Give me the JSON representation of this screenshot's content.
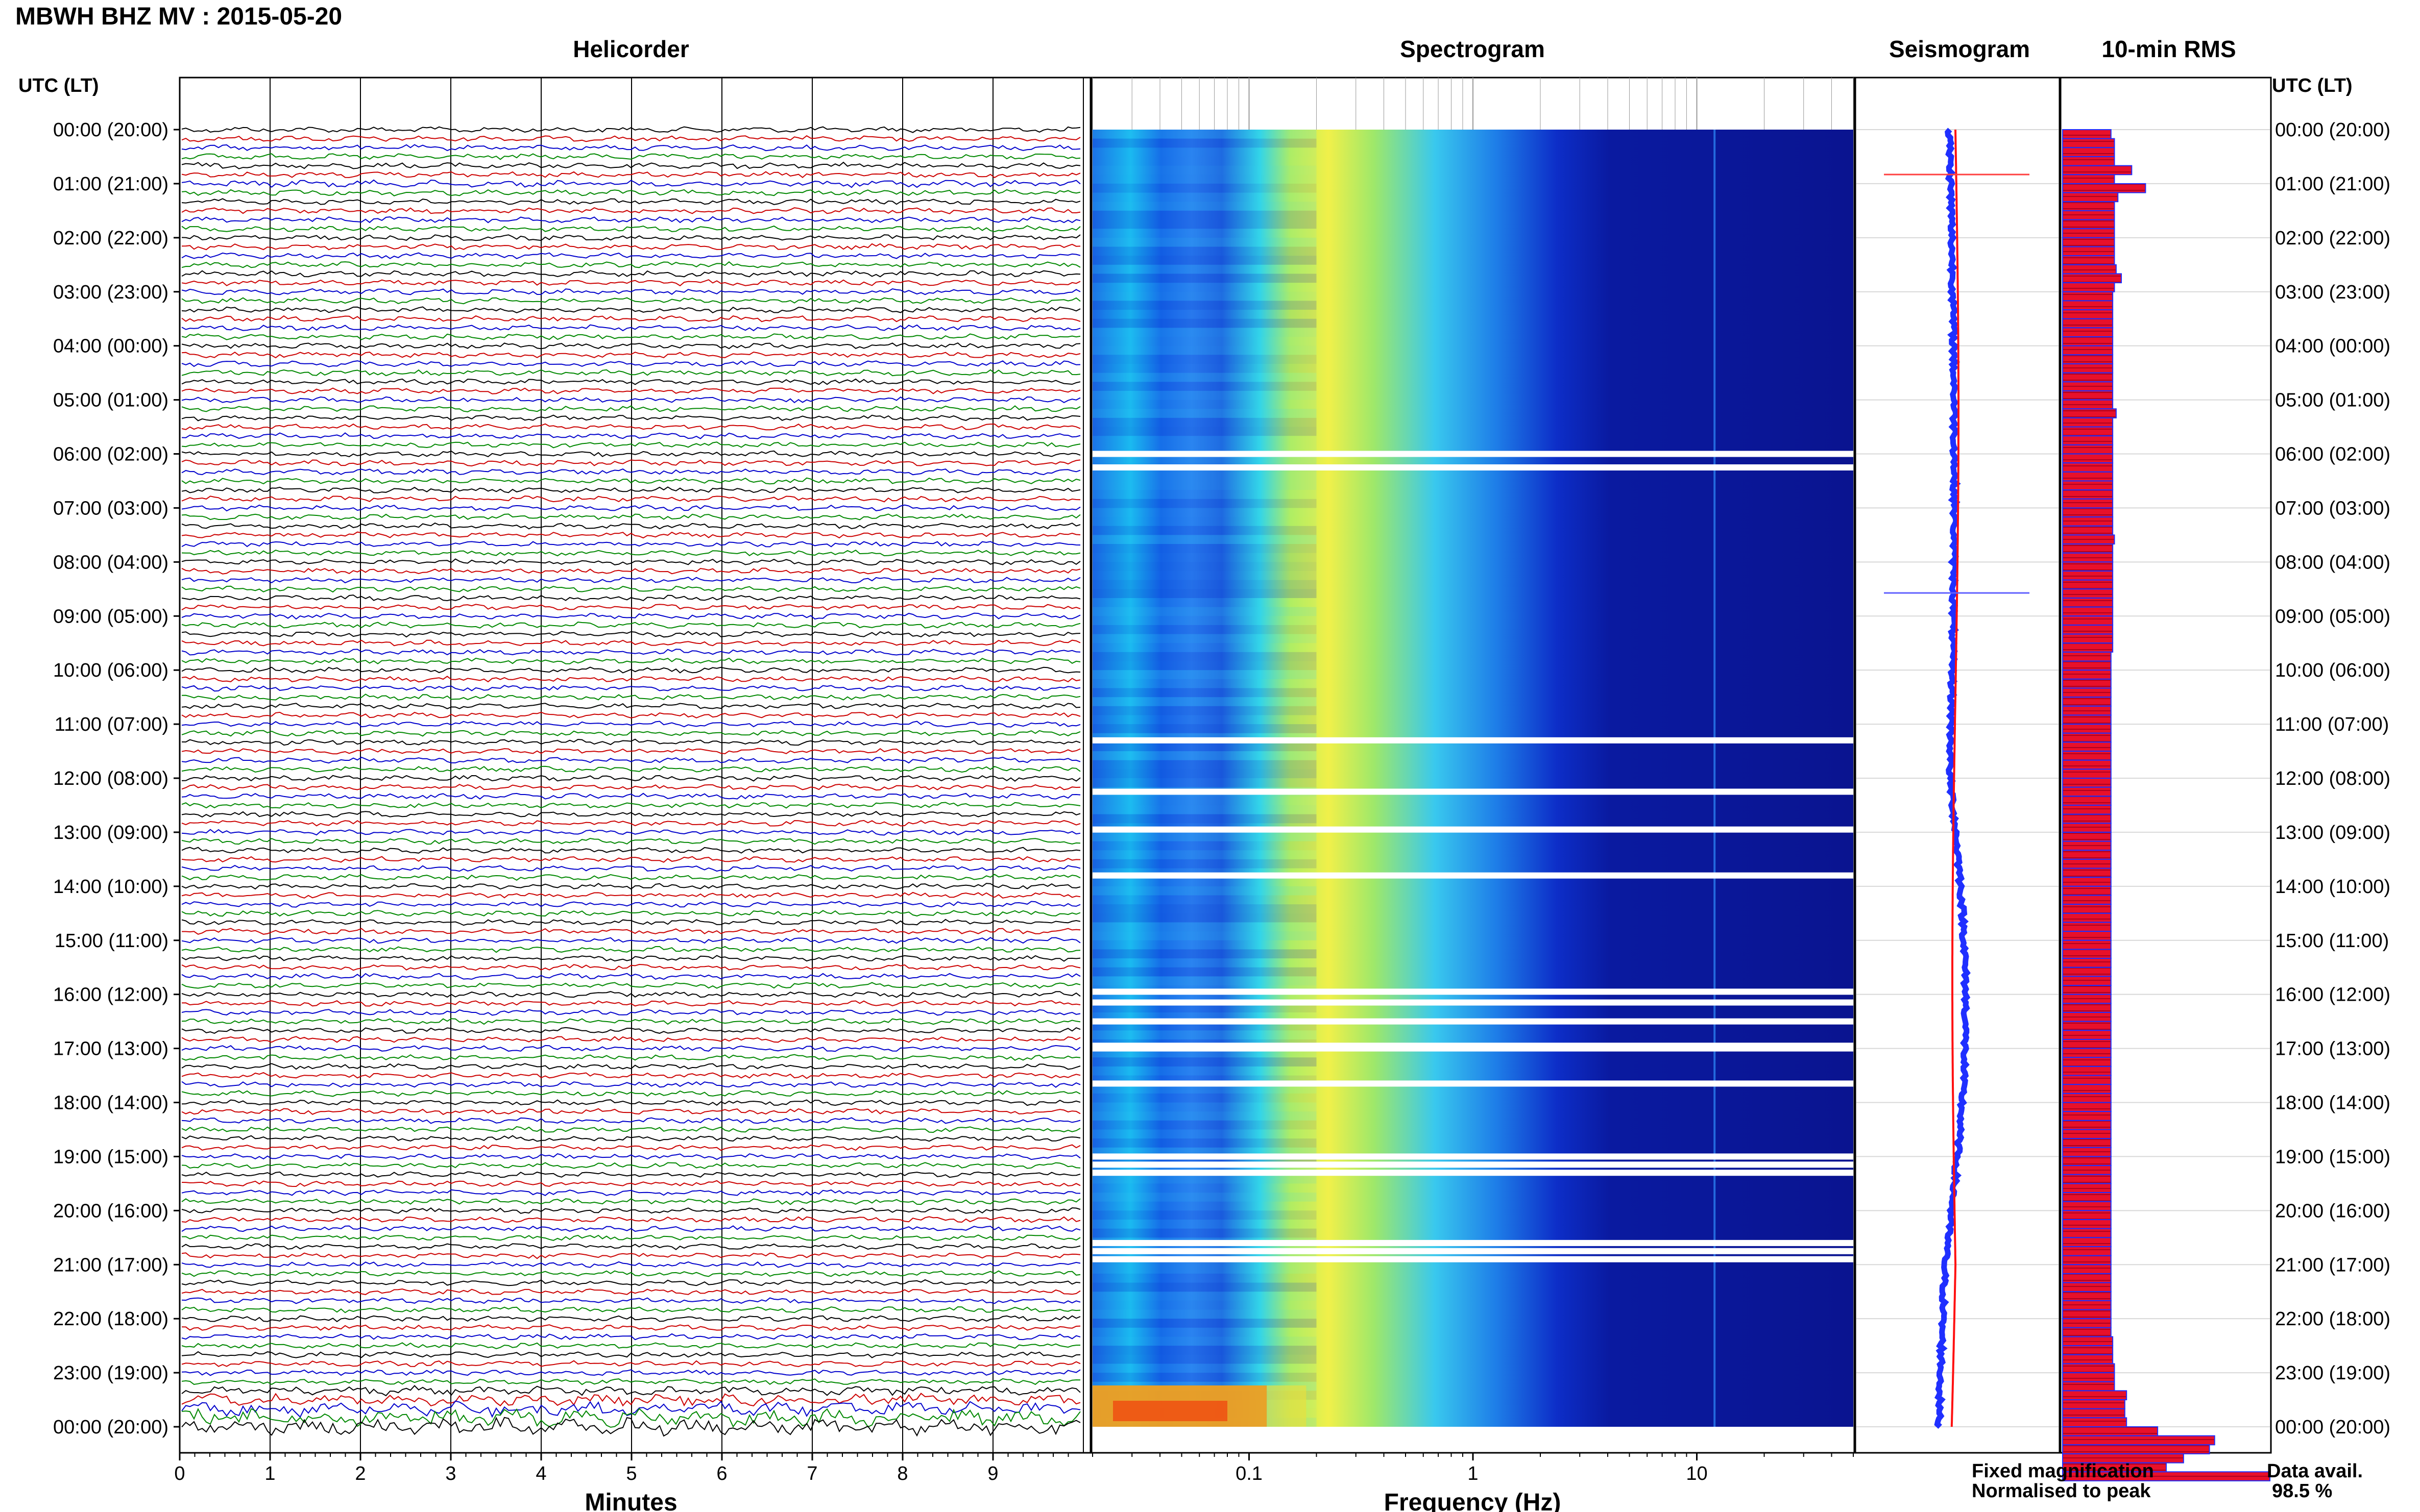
{
  "header": {
    "station_title": "MBWH BHZ MV : 2015-05-20",
    "time_header_left": "UTC (LT)",
    "time_header_right": "UTC (LT)"
  },
  "panels": {
    "helicorder": "Helicorder",
    "spectrogram": "Spectrogram",
    "seismogram": "Seismogram",
    "rms": "10-min RMS"
  },
  "axes": {
    "minutes_label": "Minutes",
    "minutes_ticks": [
      "0",
      "1",
      "2",
      "3",
      "4",
      "5",
      "6",
      "7",
      "8",
      "9"
    ],
    "frequency_label": "Frequency (Hz)",
    "frequency_ticks": [
      "0.1",
      "1",
      "10"
    ]
  },
  "time_labels": [
    "00:00 (20:00)",
    "01:00 (21:00)",
    "02:00 (22:00)",
    "03:00 (23:00)",
    "04:00 (00:00)",
    "05:00 (01:00)",
    "06:00 (02:00)",
    "07:00 (03:00)",
    "08:00 (04:00)",
    "09:00 (05:00)",
    "10:00 (06:00)",
    "11:00 (07:00)",
    "12:00 (08:00)",
    "13:00 (09:00)",
    "14:00 (10:00)",
    "15:00 (11:00)",
    "16:00 (12:00)",
    "17:00 (13:00)",
    "18:00 (14:00)",
    "19:00 (15:00)",
    "20:00 (16:00)",
    "21:00 (17:00)",
    "22:00 (18:00)",
    "23:00 (19:00)",
    "00:00 (20:00)"
  ],
  "legend": {
    "fixed": "Fixed magnification",
    "normalised": "Normalised to peak",
    "fixed_color": "#0000ff",
    "normalised_color": "#ff0000"
  },
  "availability": {
    "label": "Data avail.",
    "value": "98.5 %"
  },
  "colors": {
    "trace_cycle": [
      "#000000",
      "#cc0000",
      "#0000cc",
      "#008800"
    ],
    "rms_fill": "#e8102a",
    "rms_edge": "#1f2fff"
  },
  "chart_data": {
    "type": "heatmap",
    "x_minutes_range": [
      0,
      10
    ],
    "frequency_scale": "log",
    "frequency_range_hz": [
      0.02,
      50
    ],
    "rows_per_hour": 6,
    "rms_10min": [
      0.28,
      0.3,
      0.3,
      0.3,
      0.4,
      0.3,
      0.48,
      0.32,
      0.3,
      0.3,
      0.3,
      0.3,
      0.3,
      0.3,
      0.3,
      0.31,
      0.34,
      0.3,
      0.29,
      0.29,
      0.29,
      0.29,
      0.29,
      0.29,
      0.29,
      0.29,
      0.29,
      0.29,
      0.29,
      0.29,
      0.29,
      0.31,
      0.29,
      0.29,
      0.29,
      0.29,
      0.29,
      0.29,
      0.29,
      0.29,
      0.29,
      0.29,
      0.29,
      0.29,
      0.29,
      0.3,
      0.29,
      0.29,
      0.29,
      0.29,
      0.29,
      0.29,
      0.29,
      0.29,
      0.29,
      0.29,
      0.29,
      0.29,
      0.28,
      0.28,
      0.28,
      0.28,
      0.28,
      0.28,
      0.28,
      0.28,
      0.28,
      0.28,
      0.28,
      0.28,
      0.28,
      0.28,
      0.28,
      0.28,
      0.28,
      0.28,
      0.28,
      0.28,
      0.28,
      0.28,
      0.28,
      0.28,
      0.28,
      0.28,
      0.28,
      0.28,
      0.28,
      0.28,
      0.28,
      0.28,
      0.28,
      0.28,
      0.28,
      0.28,
      0.28,
      0.28,
      0.28,
      0.28,
      0.28,
      0.28,
      0.28,
      0.28,
      0.28,
      0.28,
      0.28,
      0.28,
      0.28,
      0.28,
      0.28,
      0.28,
      0.28,
      0.28,
      0.28,
      0.28,
      0.28,
      0.28,
      0.28,
      0.28,
      0.28,
      0.28,
      0.28,
      0.28,
      0.28,
      0.28,
      0.28,
      0.28,
      0.28,
      0.28,
      0.28,
      0.28,
      0.28,
      0.28,
      0.28,
      0.28,
      0.29,
      0.29,
      0.29,
      0.3,
      0.3,
      0.3,
      0.37,
      0.36,
      0.36,
      0.37,
      0.55,
      0.88,
      0.85,
      0.7,
      0.6,
      1.2
    ]
  }
}
